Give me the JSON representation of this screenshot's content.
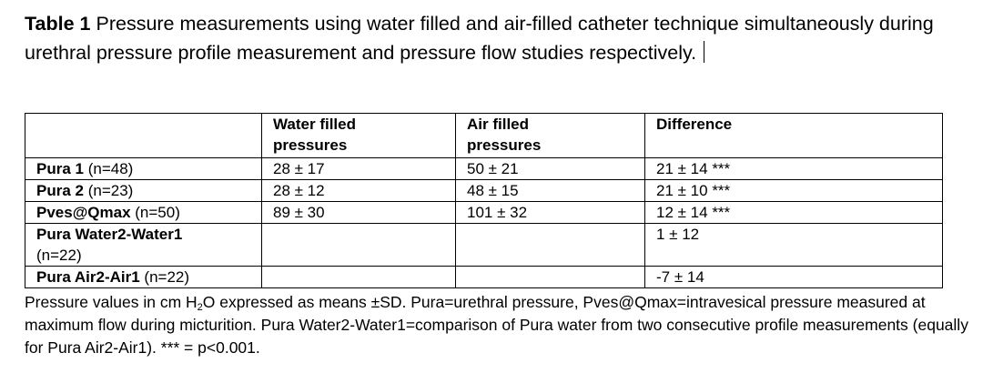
{
  "caption": {
    "label": "Table 1",
    "text": "Pressure measurements using water filled and air-filled catheter technique simultaneously during urethral pressure profile measurement and pressure flow studies respectively."
  },
  "table": {
    "header": {
      "water": "Water filled pressures",
      "air": "Air filled pressures",
      "difference": "Difference"
    },
    "rows": [
      {
        "name": "Pura 1",
        "n": "(n=48)",
        "water": "28 ± 17",
        "air": "50 ± 21",
        "difference": "21 ± 14 ***"
      },
      {
        "name": "Pura 2",
        "n": "(n=23)",
        "water": "28 ± 12",
        "air": "48 ± 15",
        "difference": "21 ± 10 ***"
      },
      {
        "name": "Pves@Qmax",
        "n": "(n=50)",
        "water": "89 ± 30",
        "air": "101 ± 32",
        "difference": "12 ± 14 ***"
      },
      {
        "name": "Pura Water2-Water1",
        "n": "(n=22)",
        "difference": "1 ± 12"
      },
      {
        "name": "Pura Air2-Air1",
        "n": "(n=22)",
        "difference": "-7 ± 14"
      }
    ]
  },
  "footnote": {
    "before": "Pressure values in cm H",
    "sub": "2",
    "after": "O expressed as means ±SD. Pura=urethral pressure, Pves@Qmax=intravesical pressure measured at maximum flow during micturition. Pura Water2-Water1=comparison of Pura water from two consecutive profile measurements (equally for Pura Air2-Air1). *** = p<0.001."
  }
}
